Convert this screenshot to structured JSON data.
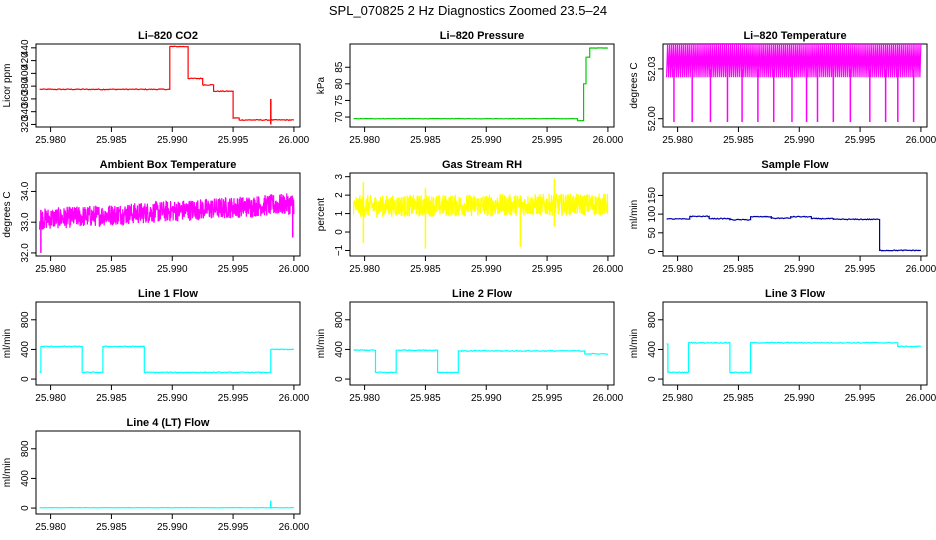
{
  "figure_title": "SPL_070825  2 Hz Diagnostics Zoomed 23.5–24",
  "chart_data": [
    {
      "type": "line",
      "title": "Li–820 CO2",
      "ylabel": "Licor ppm",
      "color": "#ff0000",
      "xlim": [
        25.9788,
        26.0005
      ],
      "ylim": [
        316,
        446
      ],
      "xticks": [
        25.98,
        25.985,
        25.99,
        25.995,
        26.0
      ],
      "xtick_labels": [
        "25.980",
        "25.985",
        "25.990",
        "25.995",
        "26.000"
      ],
      "yticks": [
        320,
        340,
        360,
        380,
        400,
        420,
        440
      ],
      "ytick_labels": [
        "320",
        "340",
        "360",
        "380",
        "400",
        "420",
        "440"
      ],
      "noise": 0.7,
      "segments": [
        {
          "x0": 25.9791,
          "x1": 25.9898,
          "y": 375
        },
        {
          "x0": 25.9898,
          "x1": 25.9913,
          "y": 442
        },
        {
          "x0": 25.9913,
          "x1": 25.9925,
          "y": 392
        },
        {
          "x0": 25.9925,
          "x1": 25.9934,
          "y": 382
        },
        {
          "x0": 25.9934,
          "x1": 25.995,
          "y": 372
        },
        {
          "x0": 25.995,
          "x1": 25.9955,
          "y": 330
        },
        {
          "x0": 25.9955,
          "x1": 26.0,
          "y": 327
        }
      ],
      "spikes": [
        {
          "x": 25.9981,
          "lo": 320,
          "hi": 360
        }
      ]
    },
    {
      "type": "line",
      "title": "Li–820 Pressure",
      "ylabel": "kPa",
      "color": "#00cc00",
      "xlim": [
        25.9788,
        26.0005
      ],
      "ylim": [
        67,
        92
      ],
      "xticks": [
        25.98,
        25.985,
        25.99,
        25.995,
        26.0
      ],
      "xtick_labels": [
        "25.980",
        "25.985",
        "25.990",
        "25.995",
        "26.000"
      ],
      "yticks": [
        70,
        75,
        80,
        85
      ],
      "ytick_labels": [
        "70",
        "75",
        "80",
        "85"
      ],
      "noise": 0.06,
      "segments": [
        {
          "x0": 25.9791,
          "x1": 25.9975,
          "y": 69.5
        },
        {
          "x0": 25.9975,
          "x1": 25.998,
          "y": 68.9
        },
        {
          "x0": 25.998,
          "x1": 25.9982,
          "y": 80.0
        },
        {
          "x0": 25.9982,
          "x1": 25.9985,
          "y": 88.0
        },
        {
          "x0": 25.9985,
          "x1": 26.0,
          "y": 90.8
        }
      ],
      "spikes": []
    },
    {
      "type": "line",
      "title": "Li–820 Temperature",
      "ylabel": "degrees C",
      "color": "#ff00ff",
      "xlim": [
        25.9788,
        26.0005
      ],
      "ylim": [
        51.995,
        52.045
      ],
      "xticks": [
        25.98,
        25.985,
        25.99,
        25.995,
        26.0
      ],
      "xtick_labels": [
        "25.980",
        "25.985",
        "25.990",
        "25.995",
        "26.000"
      ],
      "yticks": [
        52.0,
        52.03
      ],
      "ytick_labels": [
        "52.00",
        "52.03"
      ],
      "oscillate": {
        "lo": 52.025,
        "hi": 52.045,
        "count": 260
      },
      "spikes": [
        {
          "x": 25.9797,
          "lo": 51.998,
          "hi": 52.03
        },
        {
          "x": 25.9812,
          "lo": 51.998,
          "hi": 52.03
        },
        {
          "x": 25.9827,
          "lo": 51.998,
          "hi": 52.03
        },
        {
          "x": 25.9841,
          "lo": 51.998,
          "hi": 52.03
        },
        {
          "x": 25.9853,
          "lo": 51.998,
          "hi": 52.03
        },
        {
          "x": 25.9866,
          "lo": 51.998,
          "hi": 52.03
        },
        {
          "x": 25.9879,
          "lo": 51.998,
          "hi": 52.03
        },
        {
          "x": 25.9894,
          "lo": 51.998,
          "hi": 52.03
        },
        {
          "x": 25.9906,
          "lo": 51.998,
          "hi": 52.03
        },
        {
          "x": 25.9915,
          "lo": 51.998,
          "hi": 52.03
        },
        {
          "x": 25.9928,
          "lo": 51.998,
          "hi": 52.03
        },
        {
          "x": 25.9942,
          "lo": 51.998,
          "hi": 52.03
        },
        {
          "x": 25.9958,
          "lo": 51.998,
          "hi": 52.03
        },
        {
          "x": 25.9971,
          "lo": 51.998,
          "hi": 52.03
        },
        {
          "x": 25.9981,
          "lo": 51.998,
          "hi": 52.03
        },
        {
          "x": 25.9994,
          "lo": 51.998,
          "hi": 52.03
        }
      ]
    },
    {
      "type": "line",
      "title": "Ambient Box Temperature",
      "ylabel": "degrees C",
      "color": "#ff00ff",
      "xlim": [
        25.9788,
        26.0005
      ],
      "ylim": [
        31.9,
        34.6
      ],
      "xticks": [
        25.98,
        25.985,
        25.99,
        25.995,
        26.0
      ],
      "xtick_labels": [
        "25.980",
        "25.985",
        "25.990",
        "25.995",
        "26.000"
      ],
      "yticks": [
        32.0,
        33.0,
        34.0
      ],
      "ytick_labels": [
        "32.0",
        "33.0",
        "34.0"
      ],
      "noisy_band": {
        "start": 33.1,
        "end": 33.6,
        "amp": 0.35,
        "count": 900
      },
      "spikes": [
        {
          "x": 25.9792,
          "lo": 32.0,
          "hi": 33.4
        },
        {
          "x": 25.9999,
          "lo": 32.5,
          "hi": 33.8
        }
      ]
    },
    {
      "type": "line",
      "title": "Gas Stream RH",
      "ylabel": "percent",
      "color": "#ffff00",
      "xlim": [
        25.9788,
        26.0005
      ],
      "ylim": [
        -1.3,
        3.2
      ],
      "xticks": [
        25.98,
        25.985,
        25.99,
        25.995,
        26.0
      ],
      "xtick_labels": [
        "25.980",
        "25.985",
        "25.990",
        "25.995",
        "26.000"
      ],
      "yticks": [
        -1,
        0,
        1,
        2,
        3
      ],
      "ytick_labels": [
        "−1",
        "0",
        "1",
        "2",
        "3"
      ],
      "noisy_band": {
        "start": 1.4,
        "end": 1.5,
        "amp": 0.6,
        "count": 900
      },
      "spikes": [
        {
          "x": 25.9799,
          "lo": -0.6,
          "hi": 2.7
        },
        {
          "x": 25.985,
          "lo": -0.9,
          "hi": 2.4
        },
        {
          "x": 25.9928,
          "lo": -0.8,
          "hi": 2.0
        },
        {
          "x": 25.9956,
          "lo": 0.3,
          "hi": 2.9
        }
      ]
    },
    {
      "type": "line",
      "title": "Sample Flow",
      "ylabel": "ml/min",
      "color": "#0000aa",
      "xlim": [
        25.9788,
        26.0005
      ],
      "ylim": [
        -12,
        210
      ],
      "xticks": [
        25.98,
        25.985,
        25.99,
        25.995,
        26.0
      ],
      "xtick_labels": [
        "25.980",
        "25.985",
        "25.990",
        "25.995",
        "26.000"
      ],
      "yticks": [
        0,
        50,
        100,
        150
      ],
      "ytick_labels": [
        "0",
        "50",
        "100",
        "150"
      ],
      "noise": 1.2,
      "segments": [
        {
          "x0": 25.9791,
          "x1": 25.981,
          "y": 87
        },
        {
          "x0": 25.981,
          "x1": 25.9826,
          "y": 94
        },
        {
          "x0": 25.9826,
          "x1": 25.9843,
          "y": 88
        },
        {
          "x0": 25.9843,
          "x1": 25.986,
          "y": 85
        },
        {
          "x0": 25.986,
          "x1": 25.9877,
          "y": 93
        },
        {
          "x0": 25.9877,
          "x1": 25.9893,
          "y": 89
        },
        {
          "x0": 25.9893,
          "x1": 25.991,
          "y": 93
        },
        {
          "x0": 25.991,
          "x1": 25.9928,
          "y": 88
        },
        {
          "x0": 25.9928,
          "x1": 25.9966,
          "y": 86
        },
        {
          "x0": 25.9966,
          "x1": 26.0,
          "y": 3
        }
      ],
      "spikes": []
    },
    {
      "type": "line",
      "title": "Line 1 Flow",
      "ylabel": "ml/min",
      "color": "#00ffff",
      "xlim": [
        25.9788,
        26.0005
      ],
      "ylim": [
        -80,
        1040
      ],
      "xticks": [
        25.98,
        25.985,
        25.99,
        25.995,
        26.0
      ],
      "xtick_labels": [
        "25.980",
        "25.985",
        "25.990",
        "25.995",
        "26.000"
      ],
      "yticks": [
        0,
        400,
        800
      ],
      "ytick_labels": [
        "0",
        "400",
        "800"
      ],
      "noise": 6,
      "segments": [
        {
          "x0": 25.9791,
          "x1": 25.9792,
          "y": 90
        },
        {
          "x0": 25.9792,
          "x1": 25.9826,
          "y": 440
        },
        {
          "x0": 25.9826,
          "x1": 25.9843,
          "y": 90
        },
        {
          "x0": 25.9843,
          "x1": 25.9877,
          "y": 440
        },
        {
          "x0": 25.9877,
          "x1": 25.9981,
          "y": 90
        },
        {
          "x0": 25.9981,
          "x1": 26.0,
          "y": 400
        }
      ],
      "spikes": []
    },
    {
      "type": "line",
      "title": "Line 2 Flow",
      "ylabel": "ml/min",
      "color": "#00ffff",
      "xlim": [
        25.9788,
        26.0005
      ],
      "ylim": [
        -80,
        1040
      ],
      "xticks": [
        25.98,
        25.985,
        25.99,
        25.995,
        26.0
      ],
      "xtick_labels": [
        "25.980",
        "25.985",
        "25.990",
        "25.995",
        "26.000"
      ],
      "yticks": [
        0,
        400,
        800
      ],
      "ytick_labels": [
        "0",
        "400",
        "800"
      ],
      "noise": 6,
      "segments": [
        {
          "x0": 25.9791,
          "x1": 25.9809,
          "y": 390
        },
        {
          "x0": 25.9809,
          "x1": 25.9826,
          "y": 90
        },
        {
          "x0": 25.9826,
          "x1": 25.986,
          "y": 390
        },
        {
          "x0": 25.986,
          "x1": 25.9877,
          "y": 90
        },
        {
          "x0": 25.9877,
          "x1": 25.9981,
          "y": 380
        },
        {
          "x0": 25.9981,
          "x1": 26.0,
          "y": 340
        }
      ],
      "spikes": []
    },
    {
      "type": "line",
      "title": "Line 3 Flow",
      "ylabel": "ml/min",
      "color": "#00ffff",
      "xlim": [
        25.9788,
        26.0005
      ],
      "ylim": [
        -80,
        1040
      ],
      "xticks": [
        25.98,
        25.985,
        25.99,
        25.995,
        26.0
      ],
      "xtick_labels": [
        "25.980",
        "25.985",
        "25.990",
        "25.995",
        "26.000"
      ],
      "yticks": [
        0,
        400,
        800
      ],
      "ytick_labels": [
        "0",
        "400",
        "800"
      ],
      "noise": 6,
      "segments": [
        {
          "x0": 25.9791,
          "x1": 25.9792,
          "y": 470
        },
        {
          "x0": 25.9792,
          "x1": 25.9809,
          "y": 90
        },
        {
          "x0": 25.9809,
          "x1": 25.9843,
          "y": 490
        },
        {
          "x0": 25.9843,
          "x1": 25.986,
          "y": 90
        },
        {
          "x0": 25.986,
          "x1": 25.9981,
          "y": 490
        },
        {
          "x0": 25.9981,
          "x1": 26.0,
          "y": 440
        }
      ],
      "spikes": []
    },
    {
      "type": "line",
      "title": "Line 4 (LT) Flow",
      "ylabel": "ml/min",
      "color": "#00ffff",
      "xlim": [
        25.9788,
        26.0005
      ],
      "ylim": [
        -80,
        1040
      ],
      "xticks": [
        25.98,
        25.985,
        25.99,
        25.995,
        26.0
      ],
      "xtick_labels": [
        "25.980",
        "25.985",
        "25.990",
        "25.995",
        "26.000"
      ],
      "yticks": [
        0,
        400,
        800
      ],
      "ytick_labels": [
        "0",
        "400",
        "800"
      ],
      "noise": 2,
      "segments": [
        {
          "x0": 25.9791,
          "x1": 26.0,
          "y": 5
        }
      ],
      "spikes": [
        {
          "x": 25.9981,
          "lo": 5,
          "hi": 100
        }
      ]
    }
  ]
}
